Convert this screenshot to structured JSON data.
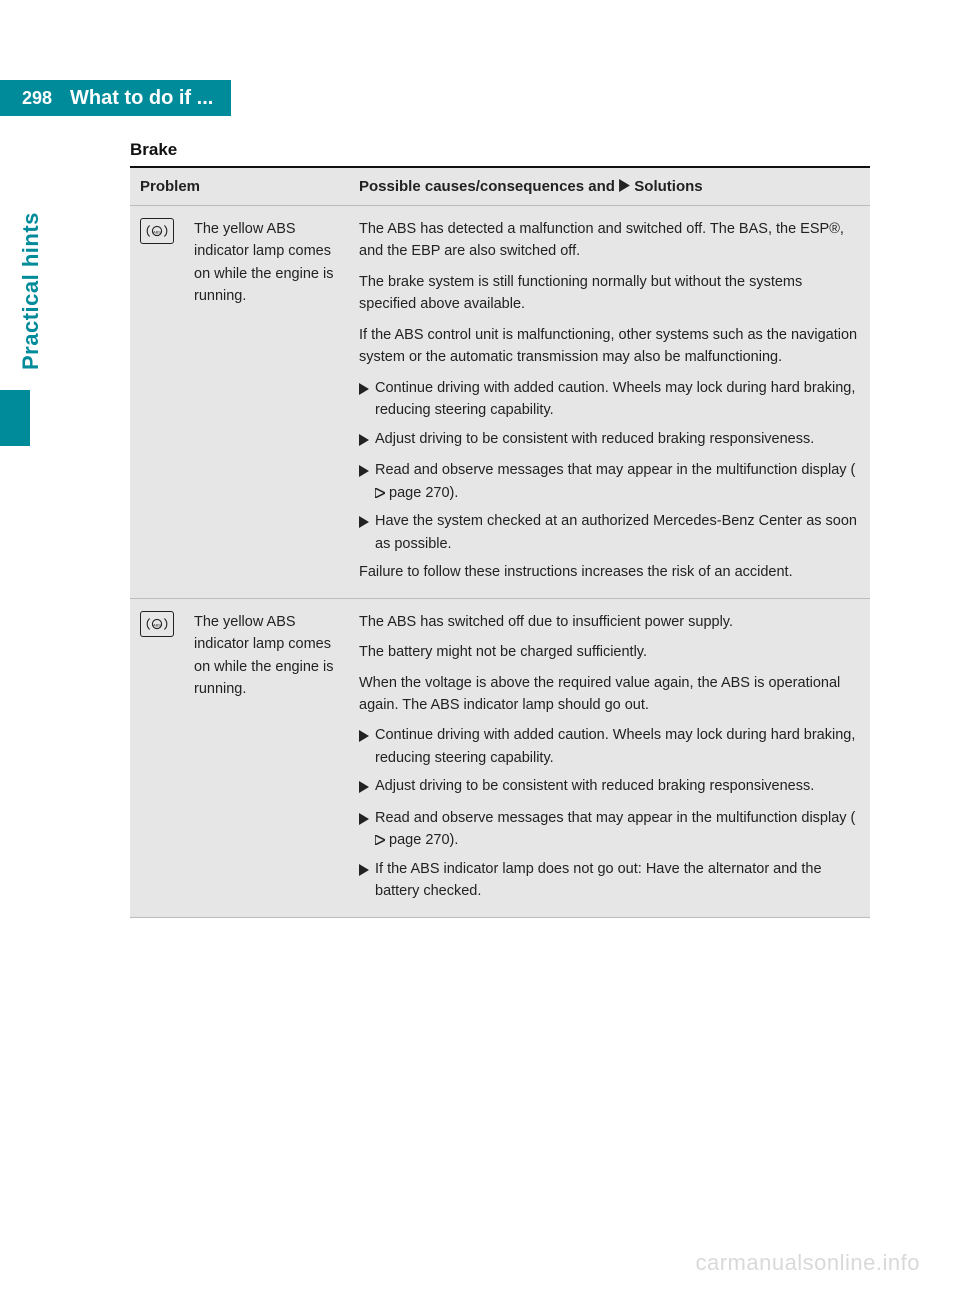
{
  "colors": {
    "teal": "#008b9b",
    "table_bg": "#e6e6e6",
    "row_border": "#bbbbbb",
    "text": "#222222",
    "watermark": "#d9d9d9"
  },
  "page_number": "298",
  "header_title": "What to do if ...",
  "side_label": "Practical hints",
  "section_title": "Brake",
  "table": {
    "header": {
      "problem": "Problem",
      "solutions_prefix": "Possible causes/consequences and ",
      "solutions_suffix": " Solutions"
    },
    "rows": [
      {
        "icon_name": "abs-indicator-icon",
        "problem": "The yellow ABS indicator lamp comes on while the engine is running.",
        "paras_top": [
          "The ABS has detected a malfunction and switched off. The BAS, the ESP®, and the EBP are also switched off.",
          "The brake system is still functioning normally but without the systems specified above available.",
          "If the ABS control unit is malfunctioning, other systems such as the navigation system or the automatic transmission may also be malfunctioning."
        ],
        "bullets": [
          "Continue driving with added caution. Wheels may lock during hard braking, reducing steering capability.",
          "Adjust driving to be consistent with reduced braking responsiveness.",
          "Read and observe messages that may appear in the multifunction display ( page 270).",
          "Have the system checked at an authorized Mercedes-Benz Center as soon as possible."
        ],
        "page_ref_bullet_index": 2,
        "paras_bottom": [
          "Failure to follow these instructions increases the risk of an accident."
        ]
      },
      {
        "icon_name": "abs-indicator-icon",
        "problem": "The yellow ABS indicator lamp comes on while the engine is running.",
        "paras_top": [
          "The ABS has switched off due to insufficient power supply.",
          "The battery might not be charged sufficiently.",
          "When the voltage is above the required value again, the ABS is operational again. The ABS indicator lamp should go out."
        ],
        "bullets": [
          "Continue driving with added caution. Wheels may lock during hard braking, reducing steering capability.",
          "Adjust driving to be consistent with reduced braking responsiveness.",
          "Read and observe messages that may appear in the multifunction display ( page 270).",
          "If the ABS indicator lamp does not go out: Have the alternator and the battery checked."
        ],
        "page_ref_bullet_index": 2,
        "paras_bottom": []
      }
    ]
  },
  "watermark": "carmanualsonline.info"
}
